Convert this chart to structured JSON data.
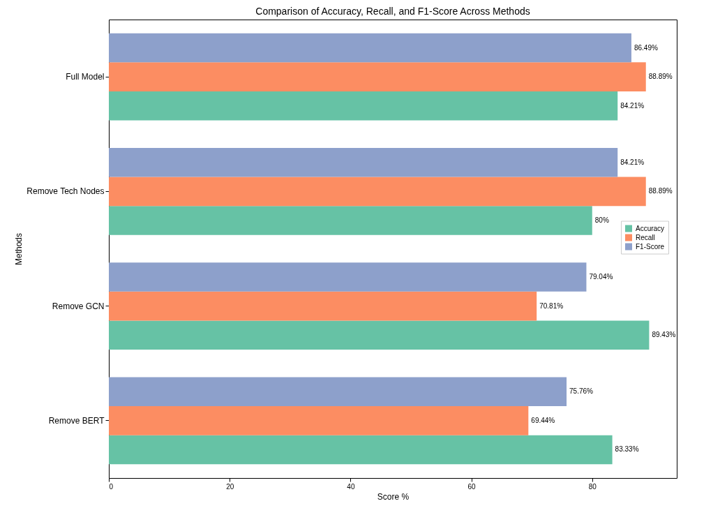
{
  "chart_data": {
    "type": "bar",
    "orientation": "horizontal",
    "title": "Comparison of Accuracy, Recall, and F1-Score Across Methods",
    "xlabel": "Score %",
    "ylabel": "Methods",
    "categories": [
      "Full Model",
      "Remove Tech Nodes",
      "Remove GCN",
      "Remove BERT"
    ],
    "series": [
      {
        "name": "Accuracy",
        "color": "#66c2a5",
        "values": [
          84.21,
          80,
          89.43,
          83.33
        ],
        "value_labels": [
          "84.21%",
          "80%",
          "89.43%",
          "83.33%"
        ]
      },
      {
        "name": "Recall",
        "color": "#fc8d62",
        "values": [
          88.89,
          88.89,
          70.81,
          69.44
        ],
        "value_labels": [
          "88.89%",
          "88.89%",
          "70.81%",
          "69.44%"
        ]
      },
      {
        "name": "F1-Score",
        "color": "#8da0cb",
        "values": [
          86.49,
          84.21,
          79.04,
          75.76
        ],
        "value_labels": [
          "86.49%",
          "84.21%",
          "79.04%",
          "75.76%"
        ]
      }
    ],
    "xlim": [
      0,
      94
    ],
    "xticks": [
      0,
      20,
      40,
      60,
      80
    ],
    "grid": false,
    "legend": "right"
  }
}
